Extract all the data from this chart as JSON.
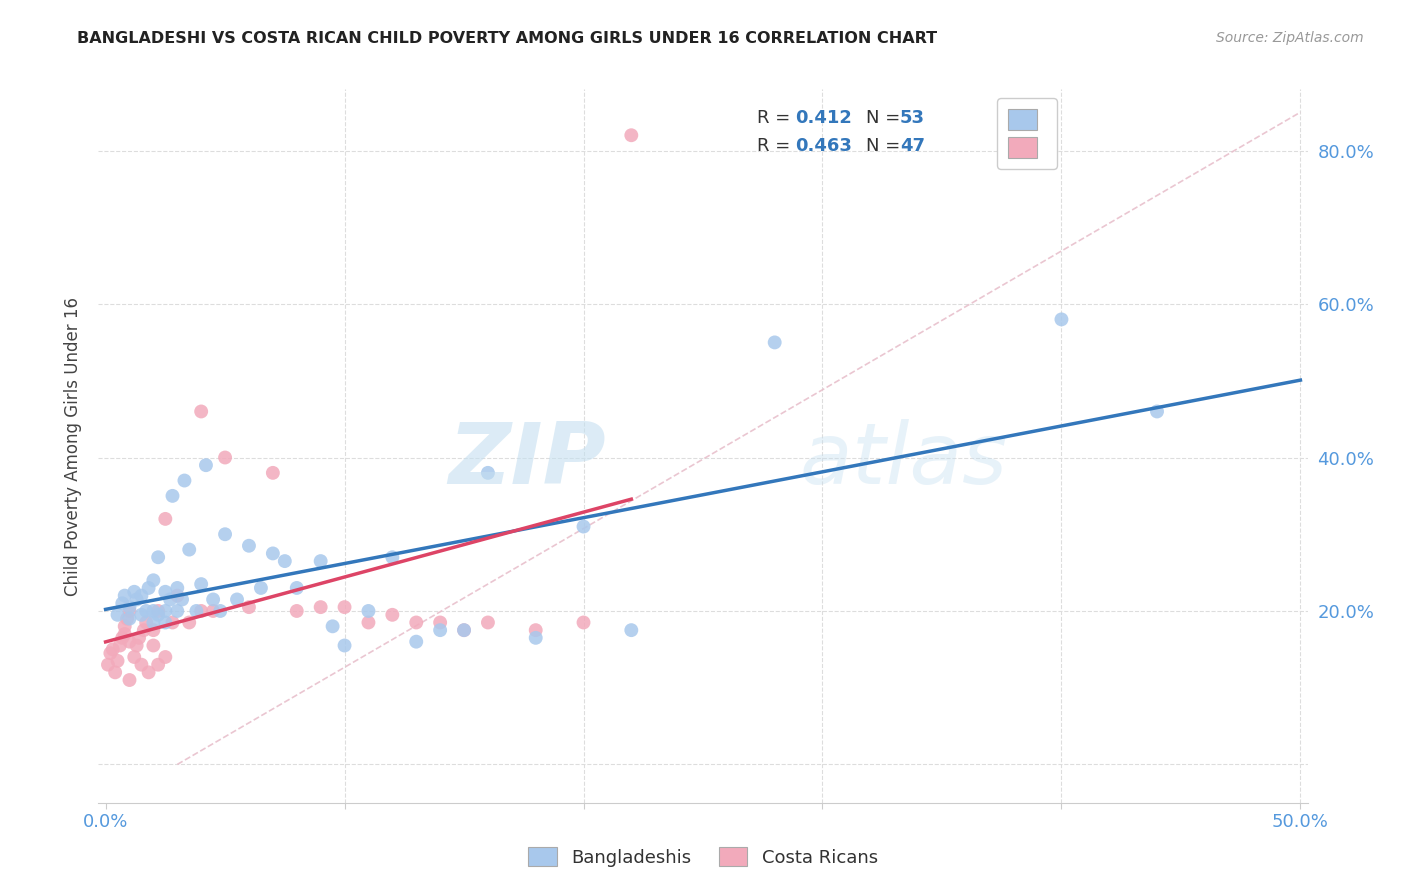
{
  "title": "BANGLADESHI VS COSTA RICAN CHILD POVERTY AMONG GIRLS UNDER 16 CORRELATION CHART",
  "source": "Source: ZipAtlas.com",
  "ylabel": "Child Poverty Among Girls Under 16",
  "xlim": [
    -0.003,
    0.503
  ],
  "ylim": [
    -0.05,
    0.88
  ],
  "blue_color": "#A8C8EC",
  "pink_color": "#F2AABB",
  "blue_line_color": "#3377BB",
  "pink_line_color": "#DD4466",
  "diag_color": "#E8C0CC",
  "R_blue": "0.412",
  "N_blue": "53",
  "R_pink": "0.463",
  "N_pink": "47",
  "legend_label_blue": "Bangladeshis",
  "legend_label_pink": "Costa Ricans",
  "watermark_zip": "ZIP",
  "watermark_atlas": "atlas",
  "label_color": "#333333",
  "number_color": "#3377BB",
  "axis_label_color": "#5599DD",
  "background_color": "#FFFFFF",
  "grid_color": "#DDDDDD",
  "blue_points_x": [
    0.005,
    0.007,
    0.008,
    0.01,
    0.01,
    0.012,
    0.013,
    0.015,
    0.015,
    0.017,
    0.018,
    0.02,
    0.02,
    0.02,
    0.022,
    0.022,
    0.025,
    0.025,
    0.025,
    0.027,
    0.028,
    0.03,
    0.03,
    0.032,
    0.033,
    0.035,
    0.038,
    0.04,
    0.042,
    0.045,
    0.048,
    0.05,
    0.055,
    0.06,
    0.065,
    0.07,
    0.075,
    0.08,
    0.09,
    0.095,
    0.1,
    0.11,
    0.12,
    0.13,
    0.14,
    0.15,
    0.16,
    0.18,
    0.2,
    0.22,
    0.28,
    0.4,
    0.44
  ],
  "blue_points_y": [
    0.195,
    0.21,
    0.22,
    0.19,
    0.205,
    0.225,
    0.215,
    0.195,
    0.22,
    0.2,
    0.23,
    0.185,
    0.2,
    0.24,
    0.195,
    0.27,
    0.185,
    0.2,
    0.225,
    0.215,
    0.35,
    0.2,
    0.23,
    0.215,
    0.37,
    0.28,
    0.2,
    0.235,
    0.39,
    0.215,
    0.2,
    0.3,
    0.215,
    0.285,
    0.23,
    0.275,
    0.265,
    0.23,
    0.265,
    0.18,
    0.155,
    0.2,
    0.27,
    0.16,
    0.175,
    0.175,
    0.38,
    0.165,
    0.31,
    0.175,
    0.55,
    0.58,
    0.46
  ],
  "pink_points_x": [
    0.001,
    0.002,
    0.003,
    0.004,
    0.005,
    0.006,
    0.007,
    0.008,
    0.008,
    0.009,
    0.01,
    0.01,
    0.01,
    0.012,
    0.013,
    0.014,
    0.015,
    0.016,
    0.017,
    0.018,
    0.02,
    0.02,
    0.022,
    0.022,
    0.025,
    0.025,
    0.028,
    0.03,
    0.035,
    0.04,
    0.04,
    0.045,
    0.05,
    0.06,
    0.07,
    0.08,
    0.09,
    0.1,
    0.11,
    0.12,
    0.13,
    0.14,
    0.15,
    0.16,
    0.18,
    0.2,
    0.22
  ],
  "pink_points_y": [
    0.13,
    0.145,
    0.15,
    0.12,
    0.135,
    0.155,
    0.165,
    0.17,
    0.18,
    0.19,
    0.11,
    0.16,
    0.2,
    0.14,
    0.155,
    0.165,
    0.13,
    0.175,
    0.185,
    0.12,
    0.155,
    0.175,
    0.13,
    0.2,
    0.14,
    0.32,
    0.185,
    0.22,
    0.185,
    0.46,
    0.2,
    0.2,
    0.4,
    0.205,
    0.38,
    0.2,
    0.205,
    0.205,
    0.185,
    0.195,
    0.185,
    0.185,
    0.175,
    0.185,
    0.175,
    0.185,
    0.82
  ],
  "blue_line_x_start": 0.0,
  "blue_line_x_end": 0.5,
  "pink_line_x_start": 0.0,
  "pink_line_x_end": 0.22
}
